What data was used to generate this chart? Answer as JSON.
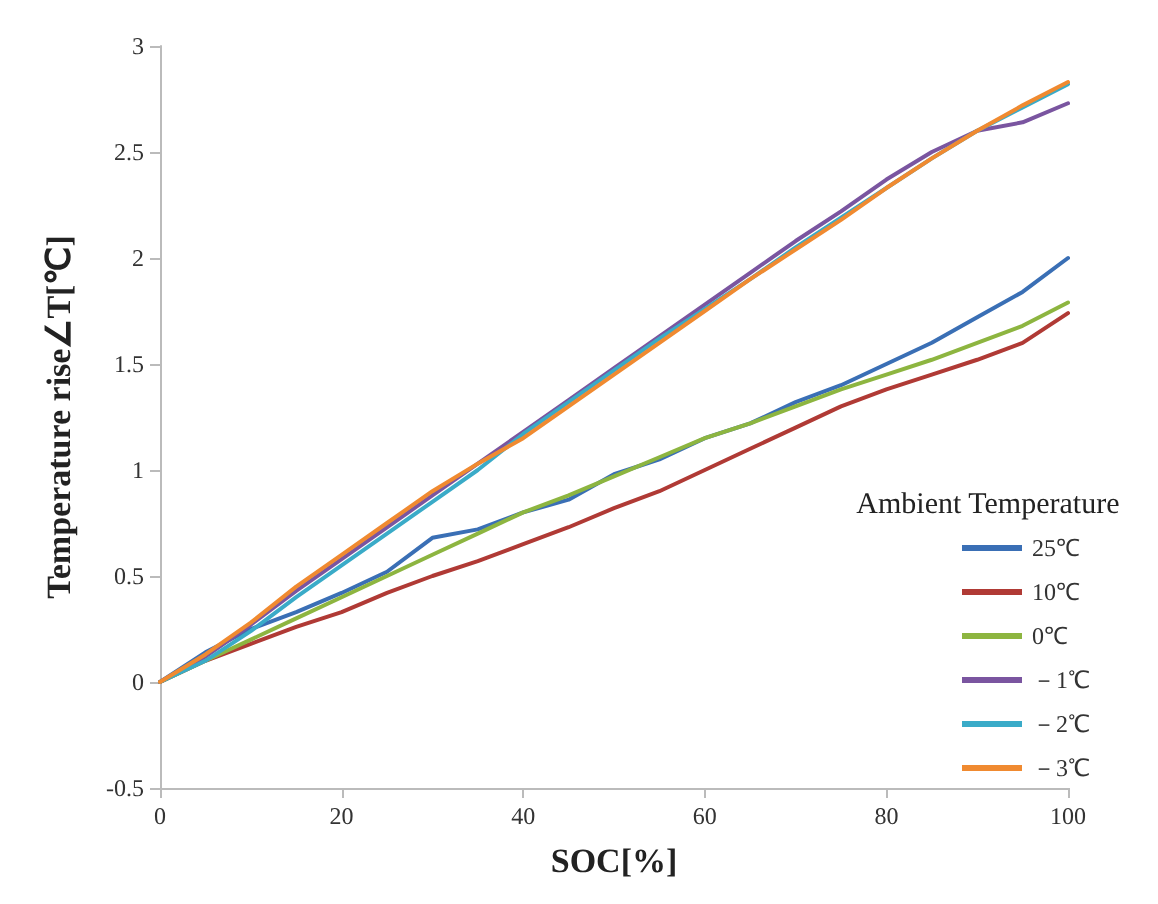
{
  "chart_data": {
    "type": "line",
    "xlabel": "SOC[%]",
    "ylabel": "Temperature rise∠T[℃]",
    "legend_title": "Ambient Temperature",
    "legend": "right",
    "grid": false,
    "marker": "none",
    "line_style": "solid",
    "x": [
      0,
      5,
      10,
      15,
      20,
      25,
      30,
      35,
      40,
      45,
      50,
      55,
      60,
      65,
      70,
      75,
      80,
      85,
      90,
      95,
      100
    ],
    "xlim": [
      0,
      100
    ],
    "xticks": [
      0,
      20,
      40,
      60,
      80,
      100
    ],
    "ylim": [
      -0.5,
      3
    ],
    "yticks": [
      -0.5,
      0,
      0.5,
      1,
      1.5,
      2,
      2.5,
      3
    ],
    "series": [
      {
        "name": "25℃",
        "color": "#3a6fb5",
        "values": [
          0,
          0.14,
          0.25,
          0.33,
          0.42,
          0.52,
          0.68,
          0.72,
          0.8,
          0.86,
          0.98,
          1.05,
          1.15,
          1.22,
          1.32,
          1.4,
          1.5,
          1.6,
          1.72,
          1.84,
          2.0
        ]
      },
      {
        "name": "10℃",
        "color": "#b03a35",
        "values": [
          0,
          0.1,
          0.18,
          0.26,
          0.33,
          0.42,
          0.5,
          0.57,
          0.65,
          0.73,
          0.82,
          0.9,
          1.0,
          1.1,
          1.2,
          1.3,
          1.38,
          1.45,
          1.52,
          1.6,
          1.74
        ]
      },
      {
        "name": "0℃",
        "color": "#8db540",
        "values": [
          0,
          0.1,
          0.2,
          0.3,
          0.4,
          0.5,
          0.6,
          0.7,
          0.8,
          0.88,
          0.97,
          1.06,
          1.15,
          1.22,
          1.3,
          1.38,
          1.45,
          1.52,
          1.6,
          1.68,
          1.79
        ]
      },
      {
        "name": "－1℃",
        "color": "#7a55a0",
        "values": [
          0,
          0.12,
          0.27,
          0.43,
          0.58,
          0.73,
          0.88,
          1.03,
          1.18,
          1.33,
          1.48,
          1.63,
          1.78,
          1.93,
          2.08,
          2.22,
          2.37,
          2.5,
          2.6,
          2.64,
          2.73
        ]
      },
      {
        "name": "－2℃",
        "color": "#3aabc8",
        "values": [
          0,
          0.1,
          0.24,
          0.4,
          0.55,
          0.7,
          0.85,
          1.0,
          1.17,
          1.32,
          1.47,
          1.62,
          1.76,
          1.9,
          2.05,
          2.19,
          2.33,
          2.47,
          2.6,
          2.71,
          2.82
        ]
      },
      {
        "name": "－3℃",
        "color": "#f08a30",
        "values": [
          0,
          0.13,
          0.28,
          0.45,
          0.6,
          0.75,
          0.9,
          1.03,
          1.15,
          1.3,
          1.45,
          1.6,
          1.75,
          1.9,
          2.04,
          2.18,
          2.33,
          2.47,
          2.6,
          2.72,
          2.83
        ]
      }
    ]
  }
}
